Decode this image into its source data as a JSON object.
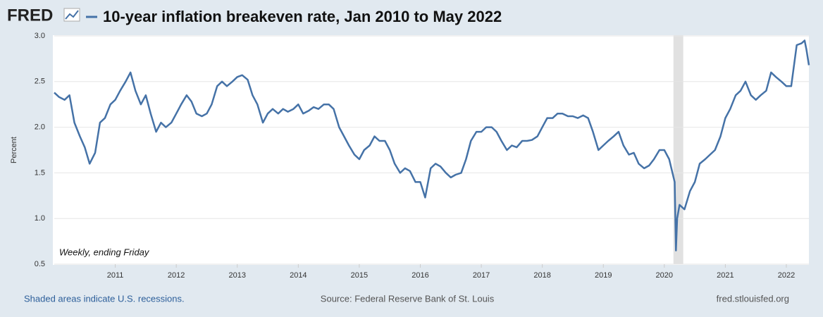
{
  "logo": "FRED",
  "chart_data": {
    "type": "line",
    "title": "10-year inflation breakeven rate, Jan 2010 to May 2022",
    "y_label": "Percent",
    "annotation": "Weekly, ending Friday",
    "recession_note": "Shaded areas indicate U.S. recessions.",
    "source": "Source: Federal Reserve Bank of St. Louis",
    "site": "fred.stlouisfed.org",
    "xlim": [
      2010,
      2022.37
    ],
    "xticks": [
      2011,
      2012,
      2013,
      2014,
      2015,
      2016,
      2017,
      2018,
      2019,
      2020,
      2021,
      2022
    ],
    "ylim": [
      0.5,
      3
    ],
    "yticks": [
      0.5,
      {
        "value": 1,
        "label": "1.0"
      },
      1.5,
      {
        "value": 2,
        "label": "2.0"
      },
      2.5,
      {
        "value": 3,
        "label": "3.0"
      }
    ],
    "grid": true,
    "recessions": [
      [
        2020.15,
        2020.31
      ]
    ],
    "recession_color": "#e1e1e1",
    "series": [
      {
        "color": "#4572a7",
        "x": [
          2010.0,
          2010.08,
          2010.17,
          2010.25,
          2010.33,
          2010.42,
          2010.5,
          2010.58,
          2010.67,
          2010.75,
          2010.83,
          2010.92,
          2011.0,
          2011.08,
          2011.17,
          2011.25,
          2011.33,
          2011.42,
          2011.5,
          2011.58,
          2011.67,
          2011.75,
          2011.83,
          2011.92,
          2012.0,
          2012.08,
          2012.17,
          2012.25,
          2012.33,
          2012.42,
          2012.5,
          2012.58,
          2012.67,
          2012.75,
          2012.83,
          2012.92,
          2013.0,
          2013.08,
          2013.17,
          2013.25,
          2013.33,
          2013.42,
          2013.5,
          2013.58,
          2013.67,
          2013.75,
          2013.83,
          2013.92,
          2014.0,
          2014.08,
          2014.17,
          2014.25,
          2014.33,
          2014.42,
          2014.5,
          2014.58,
          2014.67,
          2014.75,
          2014.83,
          2014.92,
          2015.0,
          2015.08,
          2015.17,
          2015.25,
          2015.33,
          2015.42,
          2015.5,
          2015.58,
          2015.67,
          2015.75,
          2015.83,
          2015.92,
          2016.0,
          2016.08,
          2016.17,
          2016.25,
          2016.33,
          2016.42,
          2016.5,
          2016.58,
          2016.67,
          2016.75,
          2016.83,
          2016.92,
          2017.0,
          2017.08,
          2017.17,
          2017.25,
          2017.33,
          2017.42,
          2017.5,
          2017.58,
          2017.67,
          2017.75,
          2017.83,
          2017.92,
          2018.0,
          2018.08,
          2018.17,
          2018.25,
          2018.33,
          2018.42,
          2018.5,
          2018.58,
          2018.67,
          2018.75,
          2018.83,
          2018.92,
          2019.0,
          2019.08,
          2019.17,
          2019.25,
          2019.33,
          2019.42,
          2019.5,
          2019.58,
          2019.67,
          2019.75,
          2019.83,
          2019.92,
          2020.0,
          2020.08,
          2020.17,
          2020.19,
          2020.21,
          2020.25,
          2020.33,
          2020.42,
          2020.5,
          2020.58,
          2020.67,
          2020.75,
          2020.83,
          2020.92,
          2021.0,
          2021.08,
          2021.17,
          2021.25,
          2021.33,
          2021.42,
          2021.5,
          2021.58,
          2021.67,
          2021.75,
          2021.83,
          2021.92,
          2022.0,
          2022.08,
          2022.17,
          2022.25,
          2022.3,
          2022.33,
          2022.37
        ],
        "values": [
          2.38,
          2.33,
          2.3,
          2.35,
          2.05,
          1.9,
          1.78,
          1.6,
          1.72,
          2.05,
          2.1,
          2.25,
          2.3,
          2.4,
          2.5,
          2.6,
          2.4,
          2.25,
          2.35,
          2.15,
          1.95,
          2.05,
          2.0,
          2.05,
          2.15,
          2.25,
          2.35,
          2.28,
          2.15,
          2.12,
          2.15,
          2.25,
          2.45,
          2.5,
          2.45,
          2.5,
          2.55,
          2.57,
          2.52,
          2.35,
          2.25,
          2.05,
          2.15,
          2.2,
          2.15,
          2.2,
          2.17,
          2.2,
          2.25,
          2.15,
          2.18,
          2.22,
          2.2,
          2.25,
          2.25,
          2.2,
          2.0,
          1.9,
          1.8,
          1.7,
          1.65,
          1.75,
          1.8,
          1.9,
          1.85,
          1.85,
          1.75,
          1.6,
          1.5,
          1.55,
          1.52,
          1.4,
          1.4,
          1.23,
          1.55,
          1.6,
          1.57,
          1.5,
          1.45,
          1.48,
          1.5,
          1.65,
          1.85,
          1.95,
          1.95,
          2.0,
          2.0,
          1.95,
          1.85,
          1.75,
          1.8,
          1.78,
          1.85,
          1.85,
          1.86,
          1.9,
          2.0,
          2.1,
          2.1,
          2.15,
          2.15,
          2.12,
          2.12,
          2.1,
          2.13,
          2.1,
          1.95,
          1.75,
          1.8,
          1.85,
          1.9,
          1.95,
          1.8,
          1.7,
          1.72,
          1.6,
          1.55,
          1.58,
          1.65,
          1.75,
          1.75,
          1.65,
          1.4,
          0.65,
          1.0,
          1.15,
          1.1,
          1.3,
          1.4,
          1.6,
          1.65,
          1.7,
          1.75,
          1.9,
          2.1,
          2.2,
          2.35,
          2.4,
          2.5,
          2.35,
          2.3,
          2.35,
          2.4,
          2.6,
          2.55,
          2.5,
          2.45,
          2.45,
          2.9,
          2.92,
          2.95,
          2.85,
          2.68
        ]
      }
    ]
  }
}
